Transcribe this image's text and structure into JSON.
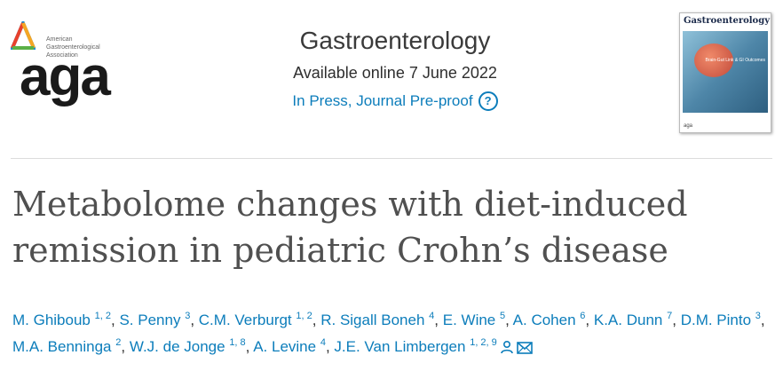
{
  "header": {
    "logo": {
      "org_name": "American Gastroenterological Association",
      "wordmark": "aga",
      "colors": [
        "#e8412c",
        "#f5a623",
        "#1f8bd0",
        "#5bb047"
      ]
    },
    "journal_name": "Gastroenterology",
    "availability": "Available online 7 June 2022",
    "status": "In Press, Journal Pre-proof",
    "help_icon": "help-icon",
    "cover": {
      "title": "Gastroenterology",
      "feature": "Brain-Gut Link & GI Outcomes",
      "publisher_mark": "aga"
    }
  },
  "article": {
    "title_line1": "Metabolome changes with diet-induced",
    "title_line2": "remission in pediatric Crohn’s disease"
  },
  "authors": [
    {
      "name": "M. Ghiboub",
      "sup": "1, 2"
    },
    {
      "name": "S. Penny",
      "sup": "3"
    },
    {
      "name": "C.M. Verburgt",
      "sup": "1, 2"
    },
    {
      "name": "R. Sigall Boneh",
      "sup": "4"
    },
    {
      "name": "E. Wine",
      "sup": "5"
    },
    {
      "name": "A. Cohen",
      "sup": "6"
    },
    {
      "name": "K.A. Dunn",
      "sup": "7"
    },
    {
      "name": "D.M. Pinto",
      "sup": "3"
    },
    {
      "name": "M.A. Benninga",
      "sup": "2"
    },
    {
      "name": "W.J. de Jonge",
      "sup": "1, 8"
    },
    {
      "name": "A. Levine",
      "sup": "4"
    },
    {
      "name": "J.E. Van Limbergen",
      "sup": "1, 2, 9"
    }
  ],
  "separator": ",",
  "icons": {
    "corresponding": "person-icon",
    "email": "mail-icon"
  },
  "link_color": "#0c7dbb"
}
